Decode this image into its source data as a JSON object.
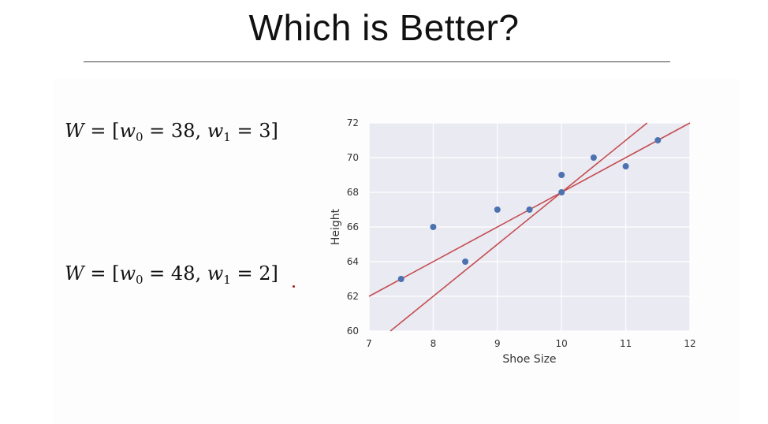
{
  "slide": {
    "title": "Which is Better?"
  },
  "equations": [
    {
      "lhs": "W",
      "eq": "=",
      "open": "[",
      "w0_sym": "w",
      "w0_sub": "0",
      "w0_eq": "=",
      "w0_val": "38",
      "sep": ",",
      "w1_sym": "w",
      "w1_sub": "1",
      "w1_eq": "=",
      "w1_val": "3",
      "close": "]"
    },
    {
      "lhs": "W",
      "eq": "=",
      "open": "[",
      "w0_sym": "w",
      "w0_sub": "0",
      "w0_eq": "=",
      "w0_val": "48",
      "sep": ",",
      "w1_sym": "w",
      "w1_sub": "1",
      "w1_eq": "=",
      "w1_val": "2",
      "close": "]"
    }
  ],
  "chart_data": {
    "type": "scatter",
    "xlabel": "Shoe Size",
    "ylabel": "Height",
    "xlim": [
      7,
      12
    ],
    "ylim": [
      60,
      72
    ],
    "xticks": [
      7,
      8,
      9,
      10,
      11,
      12
    ],
    "yticks": [
      60,
      62,
      64,
      66,
      68,
      70,
      72
    ],
    "grid": true,
    "background": "#eaeaf2",
    "point_color": "#4c72b0",
    "line_color": "#c44e52",
    "points": [
      {
        "x": 7.5,
        "y": 63
      },
      {
        "x": 8,
        "y": 66
      },
      {
        "x": 8.5,
        "y": 64
      },
      {
        "x": 9,
        "y": 67
      },
      {
        "x": 9.5,
        "y": 67
      },
      {
        "x": 10,
        "y": 68
      },
      {
        "x": 10,
        "y": 69
      },
      {
        "x": 10.5,
        "y": 70
      },
      {
        "x": 11,
        "y": 69.5
      },
      {
        "x": 11.5,
        "y": 71
      }
    ],
    "lines": [
      {
        "w0": 38,
        "w1": 3
      },
      {
        "w0": 48,
        "w1": 2
      }
    ]
  }
}
